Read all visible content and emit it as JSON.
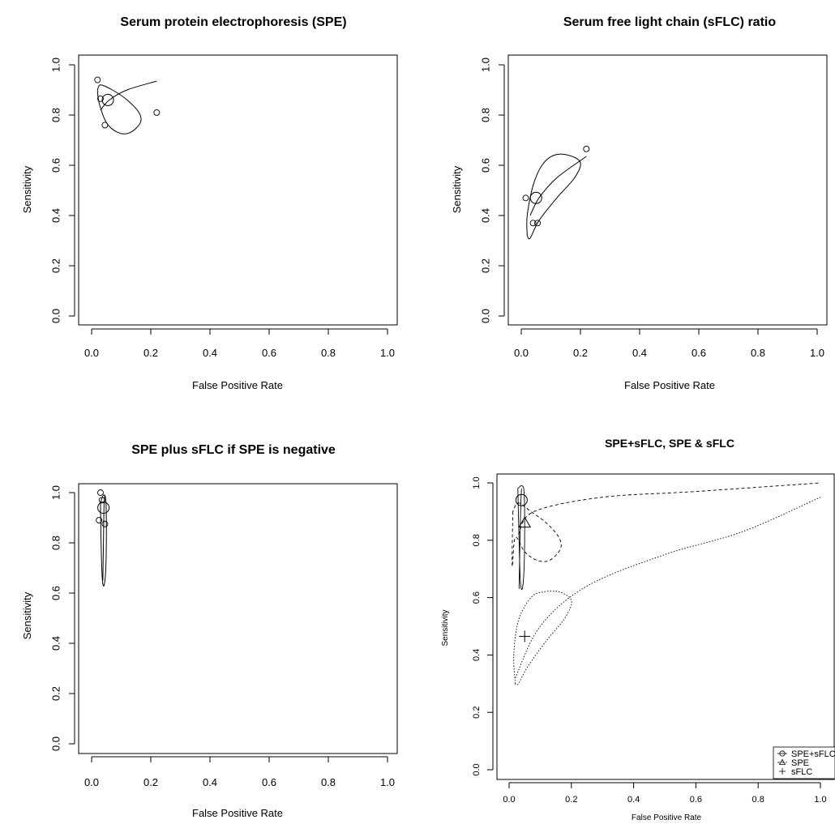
{
  "chart_data": [
    {
      "type": "scatter",
      "title": "Serum protein electrophoresis (SPE)",
      "xlabel": "False Positive Rate",
      "ylabel": "Sensitivity",
      "xlim": [
        0,
        1
      ],
      "ylim": [
        0,
        1
      ],
      "xticks": [
        "0.0",
        "0.2",
        "0.4",
        "0.6",
        "0.8",
        "1.0"
      ],
      "yticks": [
        "0.0",
        "0.2",
        "0.4",
        "0.6",
        "0.8",
        "1.0"
      ],
      "grid": false,
      "studies": [
        [
          0.02,
          0.94
        ],
        [
          0.03,
          0.865
        ],
        [
          0.045,
          0.76
        ],
        [
          0.22,
          0.81
        ]
      ],
      "summary": [
        0.055,
        0.86
      ],
      "curve": [
        [
          0.03,
          0.82
        ],
        [
          0.06,
          0.86
        ],
        [
          0.12,
          0.9
        ],
        [
          0.22,
          0.935
        ]
      ],
      "region": [
        [
          0.02,
          0.9
        ],
        [
          0.025,
          0.85
        ],
        [
          0.05,
          0.77
        ],
        [
          0.09,
          0.73
        ],
        [
          0.13,
          0.73
        ],
        [
          0.165,
          0.77
        ],
        [
          0.16,
          0.81
        ],
        [
          0.12,
          0.86
        ],
        [
          0.07,
          0.9
        ],
        [
          0.03,
          0.92
        ],
        [
          0.02,
          0.9
        ]
      ]
    },
    {
      "type": "scatter",
      "title": "Serum free light chain (sFLC) ratio",
      "xlabel": "False Positive Rate",
      "ylabel": "Sensitivity",
      "xlim": [
        0,
        1
      ],
      "ylim": [
        0,
        1
      ],
      "xticks": [
        "0.0",
        "0.2",
        "0.4",
        "0.6",
        "0.8",
        "1.0"
      ],
      "yticks": [
        "0.0",
        "0.2",
        "0.4",
        "0.6",
        "0.8",
        "1.0"
      ],
      "grid": false,
      "studies": [
        [
          0.015,
          0.47
        ],
        [
          0.04,
          0.37
        ],
        [
          0.055,
          0.37
        ],
        [
          0.22,
          0.665
        ]
      ],
      "summary": [
        0.05,
        0.47
      ],
      "curve": [
        [
          0.03,
          0.4
        ],
        [
          0.06,
          0.47
        ],
        [
          0.12,
          0.55
        ],
        [
          0.22,
          0.635
        ]
      ],
      "region": [
        [
          0.02,
          0.32
        ],
        [
          0.02,
          0.4
        ],
        [
          0.04,
          0.52
        ],
        [
          0.07,
          0.6
        ],
        [
          0.11,
          0.64
        ],
        [
          0.16,
          0.64
        ],
        [
          0.2,
          0.61
        ],
        [
          0.18,
          0.55
        ],
        [
          0.12,
          0.47
        ],
        [
          0.06,
          0.38
        ],
        [
          0.03,
          0.31
        ],
        [
          0.02,
          0.32
        ]
      ]
    },
    {
      "type": "scatter",
      "title": "SPE plus sFLC if SPE is negative",
      "xlabel": "False Positive Rate",
      "ylabel": "Sensitivity",
      "xlim": [
        0,
        1
      ],
      "ylim": [
        0,
        1
      ],
      "xticks": [
        "0.0",
        "0.2",
        "0.4",
        "0.6",
        "0.8",
        "1.0"
      ],
      "yticks": [
        "0.0",
        "0.2",
        "0.4",
        "0.6",
        "0.8",
        "1.0"
      ],
      "grid": false,
      "studies": [
        [
          0.03,
          1.0
        ],
        [
          0.035,
          0.97
        ],
        [
          0.025,
          0.89
        ],
        [
          0.045,
          0.875
        ]
      ],
      "summary": [
        0.04,
        0.94
      ],
      "curve": [
        [
          0.038,
          0.65
        ],
        [
          0.04,
          0.8
        ],
        [
          0.042,
          0.95
        ],
        [
          0.045,
          0.99
        ]
      ],
      "region": [
        [
          0.03,
          0.96
        ],
        [
          0.032,
          0.8
        ],
        [
          0.036,
          0.66
        ],
        [
          0.042,
          0.63
        ],
        [
          0.048,
          0.7
        ],
        [
          0.05,
          0.85
        ],
        [
          0.048,
          0.97
        ],
        [
          0.04,
          0.99
        ],
        [
          0.03,
          0.96
        ]
      ]
    },
    {
      "type": "scatter",
      "title": "SPE+sFLC, SPE & sFLC",
      "xlabel": "False Positive Rate",
      "ylabel": "Sensitivity",
      "xlim": [
        0,
        1
      ],
      "ylim": [
        0,
        1
      ],
      "xticks": [
        "0.0",
        "0.2",
        "0.4",
        "0.6",
        "0.8",
        "1.0"
      ],
      "yticks": [
        "0.0",
        "0.2",
        "0.4",
        "0.6",
        "0.8",
        "1.0"
      ],
      "grid": false,
      "legend_position": "bottom-right",
      "series": [
        {
          "name": "SPE+sFLC",
          "marker": "circle",
          "line": "solid",
          "summary": [
            0.04,
            0.94
          ],
          "curve": [
            [
              0.032,
              0.63
            ],
            [
              0.034,
              0.75
            ],
            [
              0.036,
              0.86
            ],
            [
              0.038,
              0.94
            ],
            [
              0.04,
              0.98
            ]
          ],
          "region": [
            [
              0.028,
              0.98
            ],
            [
              0.032,
              0.8
            ],
            [
              0.036,
              0.66
            ],
            [
              0.042,
              0.63
            ],
            [
              0.048,
              0.7
            ],
            [
              0.05,
              0.85
            ],
            [
              0.048,
              0.97
            ],
            [
              0.04,
              0.99
            ],
            [
              0.028,
              0.98
            ]
          ]
        },
        {
          "name": "SPE",
          "marker": "triangle",
          "line": "dashed",
          "summary": [
            0.05,
            0.86
          ],
          "curve": [
            [
              0.03,
              0.82
            ],
            [
              0.08,
              0.9
            ],
            [
              0.3,
              0.95
            ],
            [
              0.6,
              0.97
            ],
            [
              1.0,
              1.0
            ]
          ],
          "region": [
            [
              0.012,
              0.9
            ],
            [
              0.01,
              0.71
            ],
            [
              0.02,
              0.81
            ],
            [
              0.05,
              0.76
            ],
            [
              0.09,
              0.73
            ],
            [
              0.13,
              0.73
            ],
            [
              0.165,
              0.77
            ],
            [
              0.16,
              0.81
            ],
            [
              0.12,
              0.86
            ],
            [
              0.07,
              0.9
            ],
            [
              0.03,
              0.93
            ],
            [
              0.012,
              0.9
            ]
          ]
        },
        {
          "name": "sFLC",
          "marker": "plus",
          "line": "dotted",
          "summary": [
            0.05,
            0.465
          ],
          "curve": [
            [
              0.02,
              0.32
            ],
            [
              0.1,
              0.5
            ],
            [
              0.25,
              0.64
            ],
            [
              0.5,
              0.75
            ],
            [
              0.75,
              0.83
            ],
            [
              1.0,
              0.95
            ]
          ],
          "region": [
            [
              0.02,
              0.3
            ],
            [
              0.015,
              0.4
            ],
            [
              0.03,
              0.52
            ],
            [
              0.07,
              0.6
            ],
            [
              0.11,
              0.62
            ],
            [
              0.16,
              0.62
            ],
            [
              0.2,
              0.59
            ],
            [
              0.18,
              0.53
            ],
            [
              0.12,
              0.45
            ],
            [
              0.06,
              0.36
            ],
            [
              0.03,
              0.3
            ],
            [
              0.02,
              0.3
            ]
          ]
        }
      ]
    }
  ]
}
